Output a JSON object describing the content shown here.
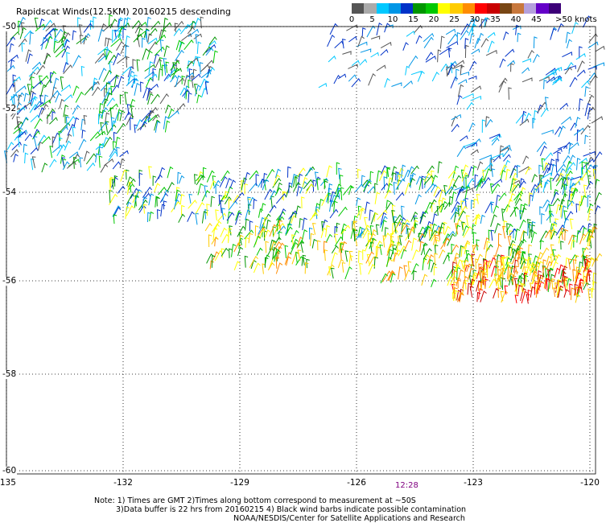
{
  "title": "Rapidscat Winds(12.5KM) 20160215 descending",
  "colorbar": {
    "colors": [
      "#555555",
      "#aaaaaa",
      "#00c8ff",
      "#0096e6",
      "#0032c8",
      "#009600",
      "#00c800",
      "#ffff00",
      "#ffcc00",
      "#ff8c00",
      "#ff0000",
      "#c80000",
      "#784614",
      "#c8783c",
      "#b4a0dc",
      "#6400c8",
      "#3c0078"
    ],
    "labels": [
      "0",
      "5",
      "10",
      "15",
      "20",
      "25",
      "30",
      "35",
      "40",
      "45",
      ">50 knots"
    ]
  },
  "lon_labels": [
    "-135",
    "-132",
    "-129",
    "-126",
    "-123",
    "-120"
  ],
  "lat_labels": [
    "-50",
    "-52",
    "-54",
    "-56",
    "-58",
    "-60"
  ],
  "time_label": "12:28",
  "notes": [
    "Note: 1) Times are GMT 2)Times along bottom correspond to measurement at ~50S",
    "3)Data buffer is 22 hrs from 20160215 4) Black wind barbs indicate possible contamination",
    "NOAA/NESDIS/Center for Satellite Applications and Research"
  ],
  "grid": "dotted"
}
